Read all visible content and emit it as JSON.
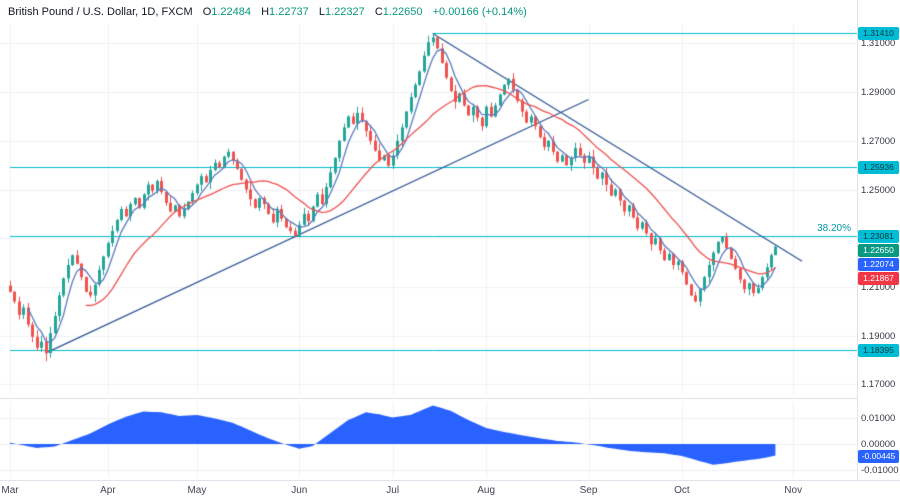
{
  "legend": {
    "title": "British Pound / U.S. Dollar, 1D, FXCM",
    "fields": [
      [
        "O",
        "1.22484"
      ],
      [
        "H",
        "1.22737"
      ],
      [
        "L",
        "1.22327"
      ],
      [
        "C",
        "1.22650"
      ]
    ],
    "change": "+0.00166 (+0.14%)"
  },
  "colors": {
    "up": "#26a69a",
    "down": "#ef5350",
    "ma_blue": "#5b7cc0",
    "ma_red": "#ef5350",
    "trendline": "#2e5596",
    "hline": "#00bcd4",
    "osc": "#2962ff",
    "grid": "#f0f2f6",
    "axis_text": "#363a45",
    "legend_value": "#089981"
  },
  "chart_data": {
    "type": "candlestick",
    "symbol": "British Pound / U.S. Dollar",
    "interval": "1D",
    "exchange": "FXCM",
    "ohlc_today": {
      "open": 1.22484,
      "high": 1.22737,
      "low": 1.22327,
      "close": 1.2265,
      "change": "+0.00166 (+0.14%)"
    },
    "price_range": [
      1.166,
      1.318
    ],
    "first_open": 1.2105,
    "closes": [
      1.208,
      1.204,
      1.1985,
      1.2015,
      1.1945,
      1.1895,
      1.185,
      1.1875,
      1.1828,
      1.191,
      1.198,
      1.2065,
      1.2135,
      1.219,
      1.223,
      1.2195,
      1.214,
      1.208,
      1.2065,
      1.211,
      1.217,
      1.2225,
      1.228,
      1.233,
      1.2375,
      1.242,
      1.239,
      1.244,
      1.2465,
      1.2425,
      1.248,
      1.252,
      1.2495,
      1.2535,
      1.249,
      1.2445,
      1.241,
      1.2435,
      1.239,
      1.242,
      1.245,
      1.2485,
      1.252,
      1.2555,
      1.253,
      1.258,
      1.261,
      1.259,
      1.2635,
      1.2655,
      1.262,
      1.2585,
      1.254,
      1.25,
      1.246,
      1.2425,
      1.2465,
      1.244,
      1.24,
      1.2365,
      1.242,
      1.238,
      1.2345,
      1.233,
      1.231,
      1.2355,
      1.24,
      1.237,
      1.243,
      1.248,
      1.244,
      1.251,
      1.257,
      1.263,
      1.27,
      1.2755,
      1.28,
      1.277,
      1.2815,
      1.278,
      1.274,
      1.27,
      1.266,
      1.262,
      1.264,
      1.2598,
      1.264,
      1.27,
      1.2755,
      1.282,
      1.288,
      1.293,
      1.2985,
      1.305,
      1.3105,
      1.3125,
      1.308,
      1.302,
      1.296,
      1.2905,
      1.286,
      1.2895,
      1.2845,
      1.2805,
      1.284,
      1.2795,
      1.276,
      1.284,
      1.28,
      1.2845,
      1.289,
      1.293,
      1.2955,
      1.291,
      1.2865,
      1.282,
      1.2775,
      1.28,
      1.276,
      1.2715,
      1.2675,
      1.27,
      1.2655,
      1.2615,
      1.264,
      1.26,
      1.263,
      1.267,
      1.264,
      1.261,
      1.2635,
      1.259,
      1.2545,
      1.257,
      1.252,
      1.2475,
      1.25,
      1.2455,
      1.241,
      1.2435,
      1.2385,
      1.234,
      1.2365,
      1.232,
      1.2275,
      1.23,
      1.225,
      1.221,
      1.2235,
      1.219,
      1.2205,
      1.216,
      1.211,
      1.2065,
      1.204,
      1.209,
      1.214,
      1.219,
      1.224,
      1.2285,
      1.2305,
      1.226,
      1.2215,
      1.2175,
      1.213,
      1.209,
      1.2115,
      1.2075,
      1.2095,
      1.214,
      1.218,
      1.223,
      1.2265
    ],
    "wick_overrides": {
      "8": {
        "low": 1.1795
      },
      "95": {
        "high": 1.3141
      },
      "172": {
        "high": 1.22737,
        "low": 1.22327
      }
    },
    "x_axis": {
      "ticks": [
        {
          "label": "Mar",
          "index": 0
        },
        {
          "label": "Apr",
          "index": 22
        },
        {
          "label": "May",
          "index": 42
        },
        {
          "label": "Jun",
          "index": 65
        },
        {
          "label": "Jul",
          "index": 86
        },
        {
          "label": "Aug",
          "index": 107
        },
        {
          "label": "Sep",
          "index": 130
        },
        {
          "label": "Oct",
          "index": 151
        },
        {
          "label": "Nov",
          "index": 176
        }
      ]
    },
    "price_axis": {
      "labels": [
        {
          "text": "1.31000",
          "value": 1.31
        },
        {
          "text": "1.29000",
          "value": 1.29
        },
        {
          "text": "1.27000",
          "value": 1.27
        },
        {
          "text": "1.25000",
          "value": 1.25
        },
        {
          "text": "1.21000",
          "value": 1.21
        },
        {
          "text": "1.19000",
          "value": 1.19
        },
        {
          "text": "1.17000",
          "value": 1.17
        }
      ],
      "grid_values": [
        1.31,
        1.29,
        1.27,
        1.25,
        1.23,
        1.21,
        1.19,
        1.17
      ]
    },
    "moving_averages": [
      {
        "name": "ma-blue",
        "period": 5,
        "last_value": "1.22074"
      },
      {
        "name": "ma-red",
        "period": 18,
        "last_value": "1.21867"
      }
    ],
    "trendlines": [
      {
        "name": "ascending-trendline",
        "from": [
          8,
          1.1828
        ],
        "to": [
          130,
          1.287
        ]
      },
      {
        "name": "descending-trendline",
        "from": [
          95,
          1.3141
        ],
        "to": [
          178,
          1.2205
        ]
      }
    ],
    "h_lines": [
      {
        "price": 1.3141,
        "from_index": 95
      },
      {
        "price": 1.25936,
        "from_index": 0
      },
      {
        "price": 1.23081,
        "from_index": 0
      },
      {
        "price": 1.18395,
        "from_index": 0
      }
    ],
    "fib_label": {
      "text": "38.20%",
      "price": 1.23081
    },
    "badges": [
      {
        "name": "hline-badge",
        "text": "1.31410",
        "price": 1.3141,
        "bg": "#00bcd4",
        "fg": "#0c3a40"
      },
      {
        "name": "hline-badge",
        "text": "1.25936",
        "price": 1.25936,
        "bg": "#00bcd4",
        "fg": "#0c3a40"
      },
      {
        "name": "fib-level-badge",
        "text": "1.23081",
        "price": 1.23081,
        "bg": "#00bcd4",
        "fg": "#0c3a40"
      },
      {
        "name": "last-price-badge",
        "text": "1.22650",
        "price": 1.2265,
        "bg": "#089981",
        "fg": "#ffffff"
      },
      {
        "name": "ma-blue-badge",
        "text": "1.22074",
        "price": 1.22074,
        "bg": "#2962ff",
        "fg": "#ffffff"
      },
      {
        "name": "ma-red-badge",
        "text": "1.21867",
        "price": 1.21867,
        "bg": "#f23645",
        "fg": "#ffffff"
      },
      {
        "name": "hline-badge",
        "text": "1.18395",
        "price": 1.18395,
        "bg": "#00bcd4",
        "fg": "#0c3a40"
      },
      {
        "name": "indicator-value-badge",
        "text": "-0.00445",
        "value": -0.00445,
        "panel": "osc",
        "bg": "#2962ff",
        "fg": "#ffffff"
      }
    ],
    "oscillator": {
      "value_label": "-0.00445",
      "axis_labels": [
        {
          "text": "0.01000",
          "value": 0.01
        },
        {
          "text": "0.00000",
          "value": 0.0
        },
        {
          "text": "-0.01000",
          "value": -0.01
        }
      ],
      "waypoints": [
        [
          0,
          0.0005
        ],
        [
          6,
          -0.0015
        ],
        [
          10,
          -0.001
        ],
        [
          14,
          0.0015
        ],
        [
          18,
          0.004
        ],
        [
          22,
          0.0075
        ],
        [
          26,
          0.0105
        ],
        [
          30,
          0.0125
        ],
        [
          34,
          0.0122
        ],
        [
          38,
          0.0108
        ],
        [
          42,
          0.0112
        ],
        [
          46,
          0.0098
        ],
        [
          50,
          0.0082
        ],
        [
          54,
          0.0052
        ],
        [
          58,
          0.0022
        ],
        [
          62,
          -0.0002
        ],
        [
          65,
          -0.0018
        ],
        [
          68,
          -0.0008
        ],
        [
          72,
          0.0042
        ],
        [
          76,
          0.0092
        ],
        [
          80,
          0.0122
        ],
        [
          83,
          0.0114
        ],
        [
          86,
          0.0102
        ],
        [
          90,
          0.0112
        ],
        [
          95,
          0.0148
        ],
        [
          99,
          0.0128
        ],
        [
          103,
          0.0092
        ],
        [
          107,
          0.0062
        ],
        [
          111,
          0.0046
        ],
        [
          115,
          0.0034
        ],
        [
          119,
          0.0022
        ],
        [
          123,
          0.0012
        ],
        [
          127,
          0.0006
        ],
        [
          131,
          -0.0004
        ],
        [
          135,
          -0.0016
        ],
        [
          139,
          -0.0026
        ],
        [
          143,
          -0.0032
        ],
        [
          147,
          -0.0036
        ],
        [
          151,
          -0.0046
        ],
        [
          155,
          -0.0066
        ],
        [
          158,
          -0.008
        ],
        [
          161,
          -0.0074
        ],
        [
          164,
          -0.0066
        ],
        [
          167,
          -0.006
        ],
        [
          170,
          -0.0052
        ],
        [
          172,
          -0.00445
        ]
      ]
    }
  }
}
